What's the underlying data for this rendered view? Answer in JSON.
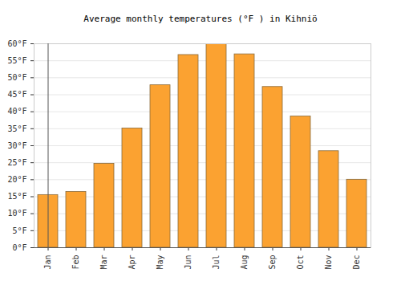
{
  "chart_data": {
    "type": "bar",
    "title": "Average monthly temperatures (°F ) in Kihniö",
    "categories": [
      "Jan",
      "Feb",
      "Mar",
      "Apr",
      "May",
      "Jun",
      "Jul",
      "Aug",
      "Sep",
      "Oct",
      "Nov",
      "Dec"
    ],
    "values": [
      15.5,
      16.4,
      24.7,
      35.1,
      47.8,
      56.7,
      60.0,
      56.9,
      47.3,
      38.6,
      28.4,
      20.0
    ],
    "color": "#fba231",
    "ylim": [
      0,
      60
    ],
    "yticks": [
      {
        "value": 0,
        "label": "0°F"
      },
      {
        "value": 5,
        "label": "5°F"
      },
      {
        "value": 10,
        "label": "10°F"
      },
      {
        "value": 15,
        "label": "15°F"
      },
      {
        "value": 20,
        "label": "20°F"
      },
      {
        "value": 25,
        "label": "25°F"
      },
      {
        "value": 30,
        "label": "30°F"
      },
      {
        "value": 35,
        "label": "35°F"
      },
      {
        "value": 40,
        "label": "40°F"
      },
      {
        "value": 45,
        "label": "45°F"
      },
      {
        "value": 50,
        "label": "50°F"
      },
      {
        "value": 55,
        "label": "55°F"
      },
      {
        "value": 60,
        "label": "60°F"
      }
    ],
    "grid": true
  }
}
